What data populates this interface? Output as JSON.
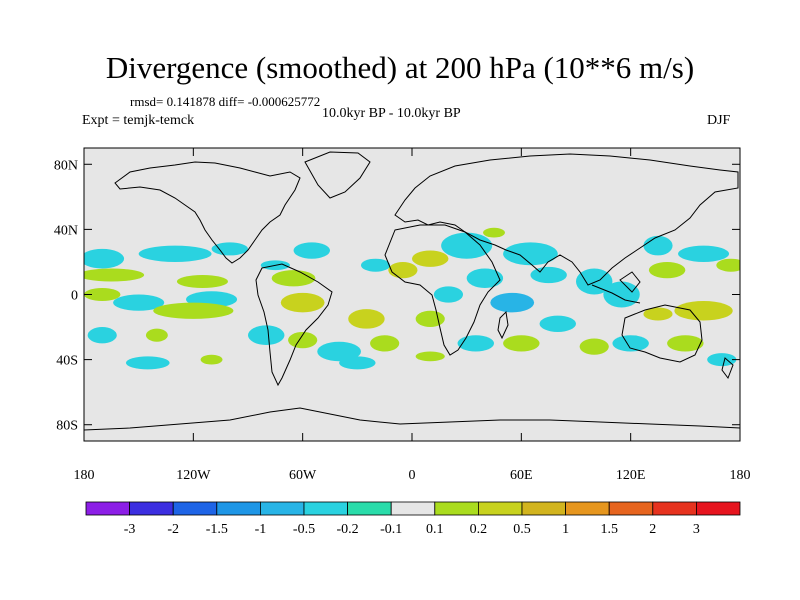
{
  "title": "Divergence (smoothed) at 200 hPa (10**6 m/s)",
  "stats": "rmsd= 0.141878 diff= -0.000625772",
  "experiment": "Expt = temjk-temck",
  "period": "10.0kyr BP - 10.0kyr BP",
  "season": "DJF",
  "map": {
    "projection": "cylindrical-equidistant",
    "lon_range": [
      -180,
      180
    ],
    "lat_range": [
      -90,
      90
    ],
    "background_color": "#e6e6e6",
    "y_ticks": [
      {
        "lat": 80,
        "label": "80N"
      },
      {
        "lat": 40,
        "label": "40N"
      },
      {
        "lat": 0,
        "label": "0"
      },
      {
        "lat": -40,
        "label": "40S"
      },
      {
        "lat": -80,
        "label": "80S"
      }
    ],
    "x_ticks": [
      {
        "lon": -180,
        "label": "180"
      },
      {
        "lon": -120,
        "label": "120W"
      },
      {
        "lon": -60,
        "label": "60W"
      },
      {
        "lon": 0,
        "label": "0"
      },
      {
        "lon": 60,
        "label": "60E"
      },
      {
        "lon": 120,
        "label": "120E"
      },
      {
        "lon": 180,
        "label": "180"
      }
    ]
  },
  "colorbar": {
    "colors": [
      "#8c1ee6",
      "#3c2ee0",
      "#1e64e6",
      "#1e96e6",
      "#28b4e6",
      "#2ad2e0",
      "#2adcaa",
      "#e6e6e6",
      "#aadc1e",
      "#c8d21e",
      "#d2b41e",
      "#e6961e",
      "#e6641e",
      "#e6321e",
      "#e6141e"
    ],
    "labels": [
      "-3",
      "-2",
      "-1.5",
      "-1",
      "-0.5",
      "-0.2",
      "-0.1",
      "0.1",
      "0.2",
      "0.5",
      "1",
      "1.5",
      "2",
      "3"
    ]
  },
  "field_patches": [
    {
      "lon": -170,
      "lat": 22,
      "rx": 12,
      "ry": 6,
      "value": -0.3
    },
    {
      "lon": -130,
      "lat": 25,
      "rx": 20,
      "ry": 5,
      "value": -0.2
    },
    {
      "lon": -100,
      "lat": 28,
      "rx": 10,
      "ry": 4,
      "value": -0.3
    },
    {
      "lon": -55,
      "lat": 27,
      "rx": 10,
      "ry": 5,
      "value": -0.2
    },
    {
      "lon": -20,
      "lat": 18,
      "rx": 8,
      "ry": 4,
      "value": -0.2
    },
    {
      "lon": 30,
      "lat": 30,
      "rx": 14,
      "ry": 8,
      "value": -0.2
    },
    {
      "lon": 65,
      "lat": 25,
      "rx": 15,
      "ry": 7,
      "value": -0.2
    },
    {
      "lon": 75,
      "lat": 12,
      "rx": 10,
      "ry": 5,
      "value": -0.3
    },
    {
      "lon": 100,
      "lat": 8,
      "rx": 10,
      "ry": 8,
      "value": -0.2
    },
    {
      "lon": 135,
      "lat": 30,
      "rx": 8,
      "ry": 6,
      "value": -0.2
    },
    {
      "lon": 160,
      "lat": 25,
      "rx": 14,
      "ry": 5,
      "value": -0.2
    },
    {
      "lon": 40,
      "lat": 10,
      "rx": 10,
      "ry": 6,
      "value": -0.2
    },
    {
      "lon": -165,
      "lat": 12,
      "rx": 18,
      "ry": 4,
      "value": 0.2
    },
    {
      "lon": -115,
      "lat": 8,
      "rx": 14,
      "ry": 4,
      "value": 0.2
    },
    {
      "lon": -65,
      "lat": 10,
      "rx": 12,
      "ry": 5,
      "value": 0.2
    },
    {
      "lon": -5,
      "lat": 15,
      "rx": 8,
      "ry": 5,
      "value": 0.3
    },
    {
      "lon": 10,
      "lat": 22,
      "rx": 10,
      "ry": 5,
      "value": 0.3
    },
    {
      "lon": 45,
      "lat": 38,
      "rx": 6,
      "ry": 3,
      "value": 0.2
    },
    {
      "lon": 140,
      "lat": 15,
      "rx": 10,
      "ry": 5,
      "value": 0.2
    },
    {
      "lon": 175,
      "lat": 18,
      "rx": 8,
      "ry": 4,
      "value": 0.2
    },
    {
      "lon": 20,
      "lat": 0,
      "rx": 8,
      "ry": 5,
      "value": -0.2
    },
    {
      "lon": -150,
      "lat": -5,
      "rx": 14,
      "ry": 5,
      "value": -0.3
    },
    {
      "lon": -110,
      "lat": -3,
      "rx": 14,
      "ry": 5,
      "value": -0.2
    },
    {
      "lon": 55,
      "lat": -5,
      "rx": 12,
      "ry": 6,
      "value": -0.5
    },
    {
      "lon": 115,
      "lat": 0,
      "rx": 10,
      "ry": 8,
      "value": -0.2
    },
    {
      "lon": 80,
      "lat": -18,
      "rx": 10,
      "ry": 5,
      "value": -0.2
    },
    {
      "lon": -170,
      "lat": 0,
      "rx": 10,
      "ry": 4,
      "value": 0.2
    },
    {
      "lon": -120,
      "lat": -10,
      "rx": 22,
      "ry": 5,
      "value": 0.2
    },
    {
      "lon": -60,
      "lat": -5,
      "rx": 12,
      "ry": 6,
      "value": 0.3
    },
    {
      "lon": -25,
      "lat": -15,
      "rx": 10,
      "ry": 6,
      "value": 0.3
    },
    {
      "lon": 10,
      "lat": -15,
      "rx": 8,
      "ry": 5,
      "value": 0.2
    },
    {
      "lon": 160,
      "lat": -10,
      "rx": 16,
      "ry": 6,
      "value": 0.5
    },
    {
      "lon": 135,
      "lat": -12,
      "rx": 8,
      "ry": 4,
      "value": 0.3
    },
    {
      "lon": -80,
      "lat": -25,
      "rx": 10,
      "ry": 6,
      "value": -0.2
    },
    {
      "lon": -40,
      "lat": -35,
      "rx": 12,
      "ry": 6,
      "value": -0.2
    },
    {
      "lon": 35,
      "lat": -30,
      "rx": 10,
      "ry": 5,
      "value": -0.2
    },
    {
      "lon": 120,
      "lat": -30,
      "rx": 10,
      "ry": 5,
      "value": -0.2
    },
    {
      "lon": -170,
      "lat": -25,
      "rx": 8,
      "ry": 5,
      "value": -0.2
    },
    {
      "lon": -140,
      "lat": -25,
      "rx": 6,
      "ry": 4,
      "value": 0.2
    },
    {
      "lon": -60,
      "lat": -28,
      "rx": 8,
      "ry": 5,
      "value": 0.2
    },
    {
      "lon": -15,
      "lat": -30,
      "rx": 8,
      "ry": 5,
      "value": 0.2
    },
    {
      "lon": 60,
      "lat": -30,
      "rx": 10,
      "ry": 5,
      "value": 0.2
    },
    {
      "lon": 100,
      "lat": -32,
      "rx": 8,
      "ry": 5,
      "value": 0.2
    },
    {
      "lon": 150,
      "lat": -30,
      "rx": 10,
      "ry": 5,
      "value": 0.2
    },
    {
      "lon": -145,
      "lat": -42,
      "rx": 12,
      "ry": 4,
      "value": -0.2
    },
    {
      "lon": -30,
      "lat": -42,
      "rx": 10,
      "ry": 4,
      "value": -0.2
    },
    {
      "lon": 170,
      "lat": -40,
      "rx": 8,
      "ry": 4,
      "value": -0.2
    },
    {
      "lon": -110,
      "lat": -40,
      "rx": 6,
      "ry": 3,
      "value": 0.2
    },
    {
      "lon": 10,
      "lat": -38,
      "rx": 8,
      "ry": 3,
      "value": 0.2
    },
    {
      "lon": -75,
      "lat": 18,
      "rx": 8,
      "ry": 3,
      "value": -0.2
    }
  ]
}
